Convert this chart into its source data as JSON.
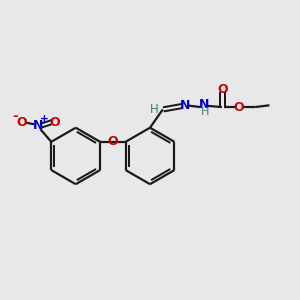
{
  "bg_color": "#e8e8e8",
  "bond_color": "#1a1a1a",
  "N_color": "#0000cc",
  "O_color": "#cc0000",
  "H_color": "#3d8080",
  "figsize": [
    3.0,
    3.0
  ],
  "dpi": 100,
  "xlim": [
    0,
    10
  ],
  "ylim": [
    0,
    10
  ]
}
